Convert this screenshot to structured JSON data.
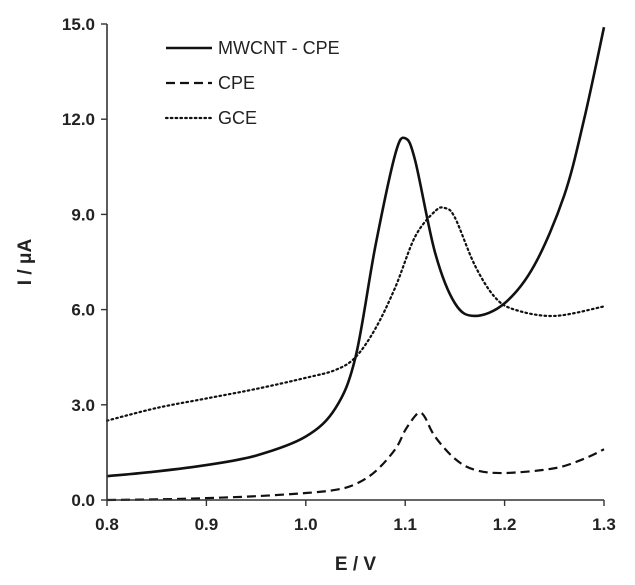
{
  "chart_data": {
    "type": "line",
    "title": "",
    "xlabel": "E / V",
    "ylabel": "I / μA",
    "xlim": [
      0.8,
      1.3
    ],
    "ylim": [
      0.0,
      15.0
    ],
    "xticks": [
      "0.8",
      "0.9",
      "1.0",
      "1.1",
      "1.2",
      "1.3"
    ],
    "yticks": [
      "0.0",
      "3.0",
      "6.0",
      "9.0",
      "12.0",
      "15.0"
    ],
    "grid": false,
    "legend_position": "top-left",
    "series": [
      {
        "name": "MWCNT - CPE",
        "style": "solid",
        "color": "#111111",
        "x": [
          0.8,
          0.85,
          0.9,
          0.95,
          1.0,
          1.03,
          1.05,
          1.07,
          1.09,
          1.1,
          1.11,
          1.13,
          1.15,
          1.17,
          1.2,
          1.23,
          1.26,
          1.28,
          1.3
        ],
        "y": [
          0.75,
          0.9,
          1.1,
          1.4,
          2.0,
          2.9,
          4.5,
          8.0,
          10.9,
          11.4,
          10.7,
          7.8,
          6.2,
          5.8,
          6.2,
          7.4,
          9.6,
          12.0,
          14.9
        ]
      },
      {
        "name": "CPE",
        "style": "dashed",
        "color": "#111111",
        "x": [
          0.8,
          0.85,
          0.9,
          0.95,
          1.0,
          1.03,
          1.05,
          1.07,
          1.09,
          1.1,
          1.11,
          1.115,
          1.12,
          1.13,
          1.15,
          1.17,
          1.2,
          1.25,
          1.28,
          1.3
        ],
        "y": [
          0.0,
          0.02,
          0.06,
          0.12,
          0.22,
          0.32,
          0.5,
          0.9,
          1.6,
          2.2,
          2.65,
          2.75,
          2.6,
          2.0,
          1.3,
          0.95,
          0.85,
          1.0,
          1.3,
          1.6
        ]
      },
      {
        "name": "GCE",
        "style": "dotted",
        "color": "#111111",
        "x": [
          0.8,
          0.85,
          0.9,
          0.95,
          1.0,
          1.03,
          1.05,
          1.07,
          1.09,
          1.11,
          1.13,
          1.14,
          1.15,
          1.17,
          1.19,
          1.21,
          1.25,
          1.3
        ],
        "y": [
          2.5,
          2.9,
          3.2,
          3.5,
          3.85,
          4.1,
          4.5,
          5.4,
          6.7,
          8.3,
          9.1,
          9.2,
          8.9,
          7.4,
          6.4,
          6.0,
          5.8,
          6.1
        ]
      }
    ]
  }
}
